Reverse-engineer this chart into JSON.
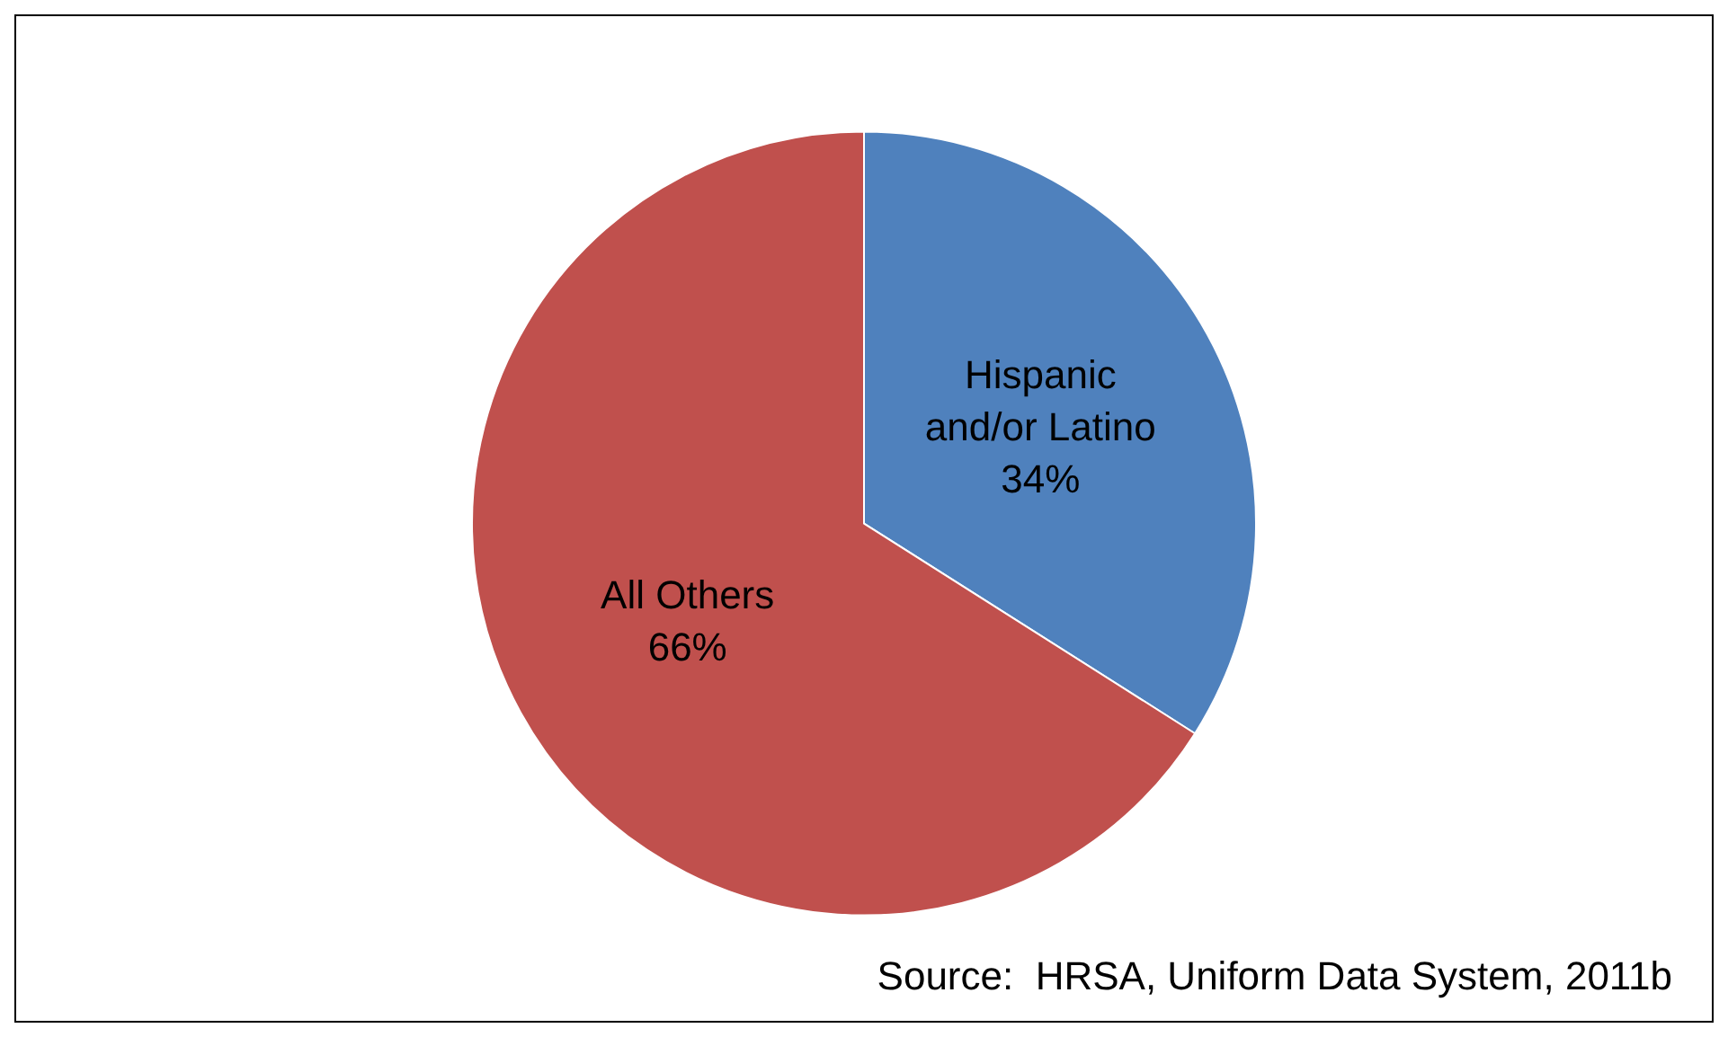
{
  "chart_data": {
    "type": "pie",
    "categories": [
      "Hispanic\nand/or Latino",
      "All Others"
    ],
    "values": [
      34,
      66
    ],
    "colors": [
      "#4f81bd",
      "#c0504d"
    ],
    "value_labels": [
      "34%",
      "66%"
    ],
    "annotations": [
      "Source:  HRSA, Uniform Data System, 2011b"
    ]
  }
}
